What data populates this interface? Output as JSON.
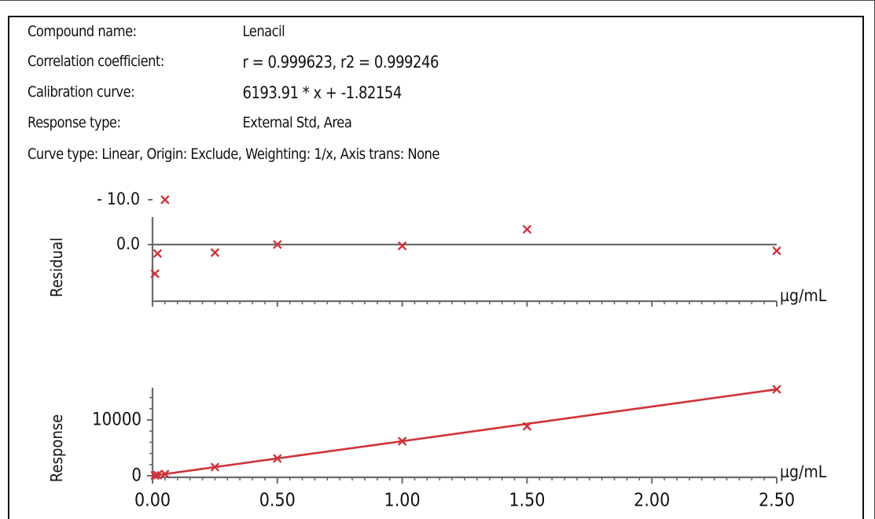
{
  "info": {
    "compound_label": "Compound name:",
    "compound_value": "Lenacil",
    "correlation_label": "Correlation coefficient:",
    "correlation_value": "r = 0.999623, r2 = 0.999246",
    "calibration_label": "Calibration curve:",
    "calibration_value": "6193.91 * x + -1.82154",
    "response_label": "Response type:",
    "response_value": "External Std, Area",
    "curve_line": "Curve type: Linear,  Origin: Exclude,  Weighting: 1/x,  Axis trans: None"
  },
  "colors": {
    "marker": "#d0333a",
    "fit_line": "#d0333a",
    "axis": "#6b6b6b",
    "text": "#111111"
  },
  "chart_data": [
    {
      "type": "scatter",
      "panel": "residual",
      "ylabel": "Residual",
      "xlabel": "µg/mL",
      "y_tick_labels": [
        "0.0",
        "- 10.0"
      ],
      "y_ticks": [
        0,
        -10
      ],
      "ylim": [
        -11,
        7
      ],
      "xlim": [
        0,
        2.5
      ],
      "x": [
        0.01,
        0.02,
        0.05,
        0.25,
        0.5,
        1.0,
        1.5,
        2.5
      ],
      "values": [
        6.5,
        2.0,
        -10.0,
        1.8,
        0.0,
        0.3,
        -3.4,
        1.4
      ]
    },
    {
      "type": "line",
      "panel": "response",
      "ylabel": "Response",
      "xlabel": "µg/mL",
      "x_tick_labels": [
        "0.00",
        "0.50",
        "1.00",
        "1.50",
        "2.00",
        "2.50"
      ],
      "x_ticks": [
        0,
        0.5,
        1.0,
        1.5,
        2.0,
        2.5
      ],
      "y_tick_labels": [
        "0",
        "10000"
      ],
      "y_ticks": [
        0,
        10000
      ],
      "ylim": [
        0,
        15000
      ],
      "xlim": [
        0,
        2.5
      ],
      "series": [
        {
          "type": "scatter",
          "x": [
            0.01,
            0.02,
            0.05,
            0.25,
            0.5,
            1.0,
            1.5,
            2.5
          ],
          "values": [
            60,
            125,
            310,
            1550,
            3095,
            6190,
            8865,
            15490
          ]
        },
        {
          "type": "line",
          "x": [
            0,
            2.5
          ],
          "values": [
            -1.82154,
            15482.95
          ]
        }
      ]
    }
  ]
}
